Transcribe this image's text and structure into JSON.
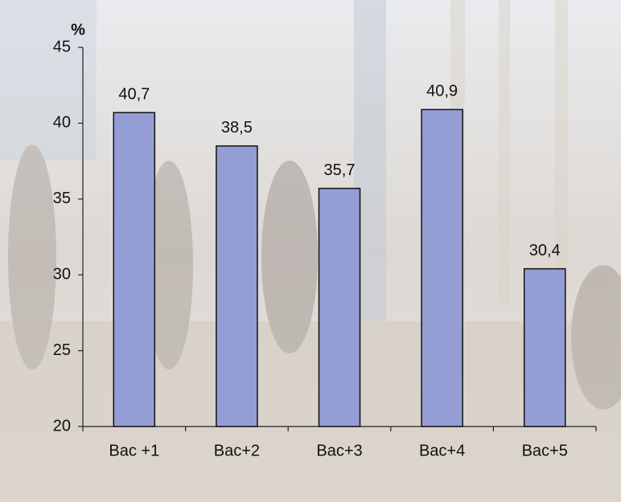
{
  "chart_data": {
    "type": "bar",
    "y_label": "%",
    "categories": [
      "Bac +1",
      "Bac+2",
      "Bac+3",
      "Bac+4",
      "Bac+5"
    ],
    "values": [
      40.7,
      38.5,
      35.7,
      40.9,
      30.4
    ],
    "value_labels": [
      "40,7",
      "38,5",
      "35,7",
      "40,9",
      "30,4"
    ],
    "color": "#959ed4",
    "ylim": [
      20,
      45
    ],
    "yticks": [
      20,
      25,
      30,
      35,
      40,
      45
    ],
    "grid": false
  }
}
